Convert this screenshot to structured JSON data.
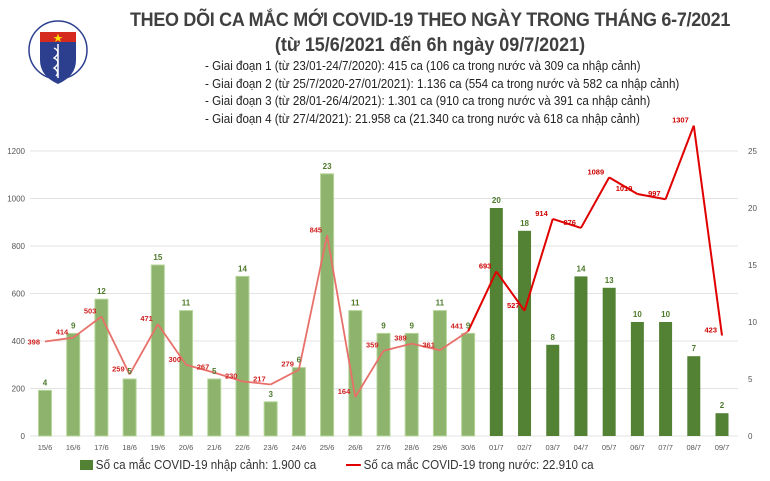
{
  "logo": {
    "text_top": "BỘ Y TẾ",
    "text_bottom": "MINISTRY OF HEALTH"
  },
  "header": {
    "title": "THEO DÕI CA MẮC MỚI COVID-19 THEO NGÀY TRONG THÁNG 6-7/2021",
    "subtitle": "(từ 15/6/2021 đến 6h ngày 09/7/2021)",
    "phases": [
      "- Giai đoạn 1 (từ 23/01-24/7/2020): 415 ca (106 ca trong nước và 309 ca nhập cảnh)",
      "- Giai đoạn 2 (từ 25/7/2020-27/01/2021): 1.136 ca (554 ca trong nước và 582 ca nhập cảnh)",
      "- Giai đoạn 3 (từ 28/01-26/4/2021): 1.301 ca (910 ca trong nước và 391 ca nhập cảnh)",
      "- Giai đoạn 4 (từ 27/4/2021): 21.958 ca (21.340 ca trong nước và 618 ca nhập cảnh)"
    ]
  },
  "colors": {
    "bar_light": "#8db36c",
    "bar_dark": "#548235",
    "line_light": "#e8706a",
    "line_dark": "#e00000",
    "grid": "#e3e3e3"
  },
  "chart_data": {
    "type": "bar+line",
    "categories": [
      "15/6",
      "16/6",
      "17/6",
      "18/6",
      "19/6",
      "20/6",
      "21/6",
      "22/6",
      "23/6",
      "24/6",
      "25/6",
      "26/6",
      "27/6",
      "28/6",
      "29/6",
      "30/6",
      "01/7",
      "02/7",
      "03/7",
      "04/7",
      "05/7",
      "06/7",
      "07/7",
      "08/7",
      "09/7"
    ],
    "series": [
      {
        "name": "Số ca mắc COVID-19 nhập cảnh: 1.900 ca",
        "type": "bar",
        "axis": "right",
        "values": [
          4,
          9,
          12,
          5,
          15,
          11,
          5,
          14,
          3,
          6,
          23,
          11,
          9,
          9,
          11,
          9,
          20,
          18,
          8,
          14,
          13,
          10,
          10,
          7,
          2
        ]
      },
      {
        "name": "Số ca mắc COVID-19 trong nước: 22.910 ca",
        "type": "line",
        "axis": "left",
        "values": [
          398,
          414,
          503,
          259,
          471,
          300,
          267,
          230,
          217,
          279,
          845,
          164,
          359,
          389,
          361,
          441,
          693,
          527,
          914,
          876,
          1089,
          1019,
          997,
          1307,
          423
        ]
      }
    ],
    "left_axis": {
      "ylim": [
        0,
        1200
      ],
      "ticks": [
        "0",
        "200",
        "400",
        "600",
        "800",
        "1000",
        "1200"
      ]
    },
    "right_axis": {
      "ylim": [
        0,
        25
      ],
      "ticks": [
        "0",
        "5",
        "10",
        "15",
        "20",
        "25"
      ]
    },
    "grid": true,
    "legend": "bottom"
  }
}
